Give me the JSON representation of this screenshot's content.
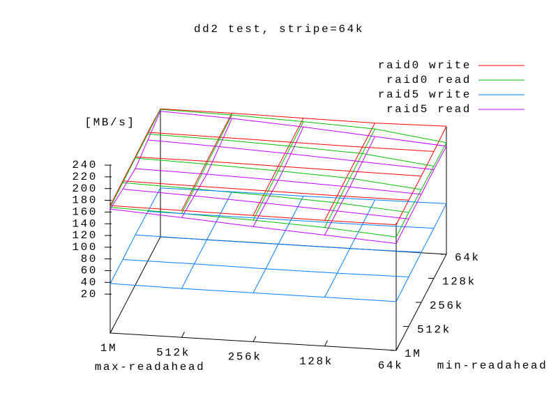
{
  "chart_data": {
    "type": "surface3d",
    "title": "dd2 test, stripe=64k",
    "xlabel": "max-readahead",
    "ylabel": "min-readahead",
    "zlabel": "[MB/s]",
    "x": [
      "1M",
      "512k",
      "256k",
      "128k",
      "64k"
    ],
    "y": [
      "1M",
      "512k",
      "256k",
      "128k",
      "64k"
    ],
    "zlim": [
      0,
      240
    ],
    "zticks": [
      20,
      40,
      60,
      80,
      100,
      120,
      140,
      160,
      180,
      200,
      220,
      240
    ],
    "legend": "top-right",
    "series": [
      {
        "name": "raid0 write",
        "color": "#ff0000",
        "values": [
          [
            171,
            170,
            169,
            168,
            168
          ],
          [
            172,
            171,
            170,
            169,
            169
          ],
          [
            172,
            172,
            171,
            170,
            169
          ],
          [
            173,
            172,
            171,
            170,
            170
          ],
          [
            172,
            172,
            171,
            170,
            172
          ]
        ]
      },
      {
        "name": "raid0 read",
        "color": "#00c000",
        "values": [
          [
            168,
            165,
            161,
            156,
            147
          ],
          [
            169,
            166,
            162,
            157,
            148
          ],
          [
            170,
            167,
            163,
            158,
            146
          ],
          [
            170,
            168,
            164,
            159,
            145
          ],
          [
            171,
            169,
            165,
            160,
            144
          ]
        ]
      },
      {
        "name": "raid5 write",
        "color": "#0080ff",
        "values": [
          [
            38,
            37,
            37,
            37,
            37
          ],
          [
            38,
            38,
            37,
            37,
            38
          ],
          [
            39,
            38,
            38,
            38,
            39
          ],
          [
            38,
            38,
            38,
            38,
            39
          ],
          [
            37,
            38,
            38,
            39,
            40
          ]
        ]
      },
      {
        "name": "raid5 read",
        "color": "#c000ff",
        "values": [
          [
            165,
            158,
            150,
            143,
            136
          ],
          [
            158,
            154,
            149,
            143,
            137
          ],
          [
            152,
            150,
            147,
            143,
            138
          ],
          [
            160,
            156,
            151,
            145,
            139
          ],
          [
            168,
            163,
            156,
            147,
            138
          ]
        ]
      }
    ]
  }
}
